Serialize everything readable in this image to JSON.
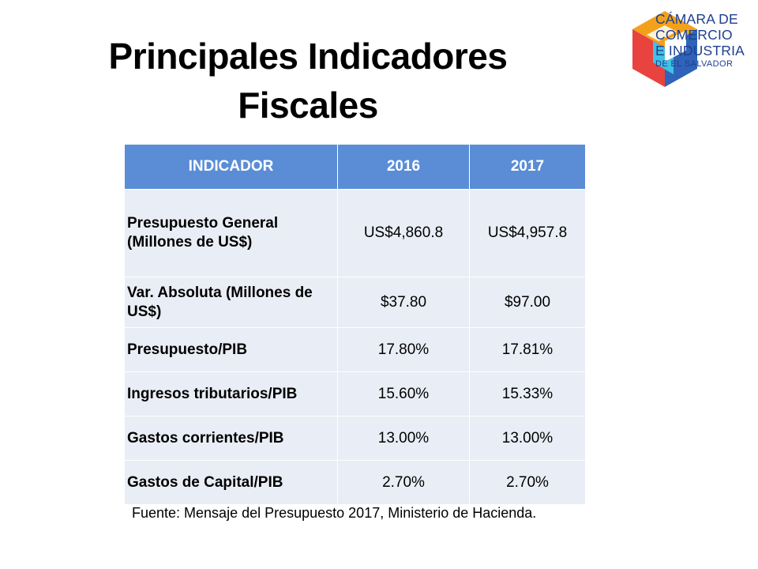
{
  "title": {
    "line1": "Principales Indicadores",
    "line2": "Fiscales"
  },
  "logo": {
    "line1": "CÁMARA DE",
    "line2": "COMERCIO",
    "line3": "E INDUSTRIA",
    "line4": "DE EL SALVADOR",
    "colors": {
      "orange": "#f3a11a",
      "blue": "#2e63b8",
      "cyan": "#41c1e3",
      "text": "#1d3f8f"
    }
  },
  "table": {
    "headers": [
      "INDICADOR",
      "2016",
      "2017"
    ],
    "rows": [
      {
        "label": "Presupuesto General (Millones de US$)",
        "y2016": "US$4,860.8",
        "y2017": "US$4,957.8"
      },
      {
        "label": "Var. Absoluta (Millones de US$)",
        "y2016": "$37.80",
        "y2017": "$97.00"
      },
      {
        "label": "Presupuesto/PIB",
        "y2016": "17.80%",
        "y2017": "17.81%"
      },
      {
        "label": "Ingresos tributarios/PIB",
        "y2016": "15.60%",
        "y2017": "15.33%"
      },
      {
        "label": "Gastos corrientes/PIB",
        "y2016": "13.00%",
        "y2017": "13.00%"
      },
      {
        "label": "Gastos de Capital/PIB",
        "y2016": "2.70%",
        "y2017": "2.70%"
      }
    ],
    "colors": {
      "header_bg": "#5b8dd6",
      "row_bg": "#e9edf5"
    }
  },
  "source": "Fuente: Mensaje del Presupuesto 2017, Ministerio de Hacienda."
}
